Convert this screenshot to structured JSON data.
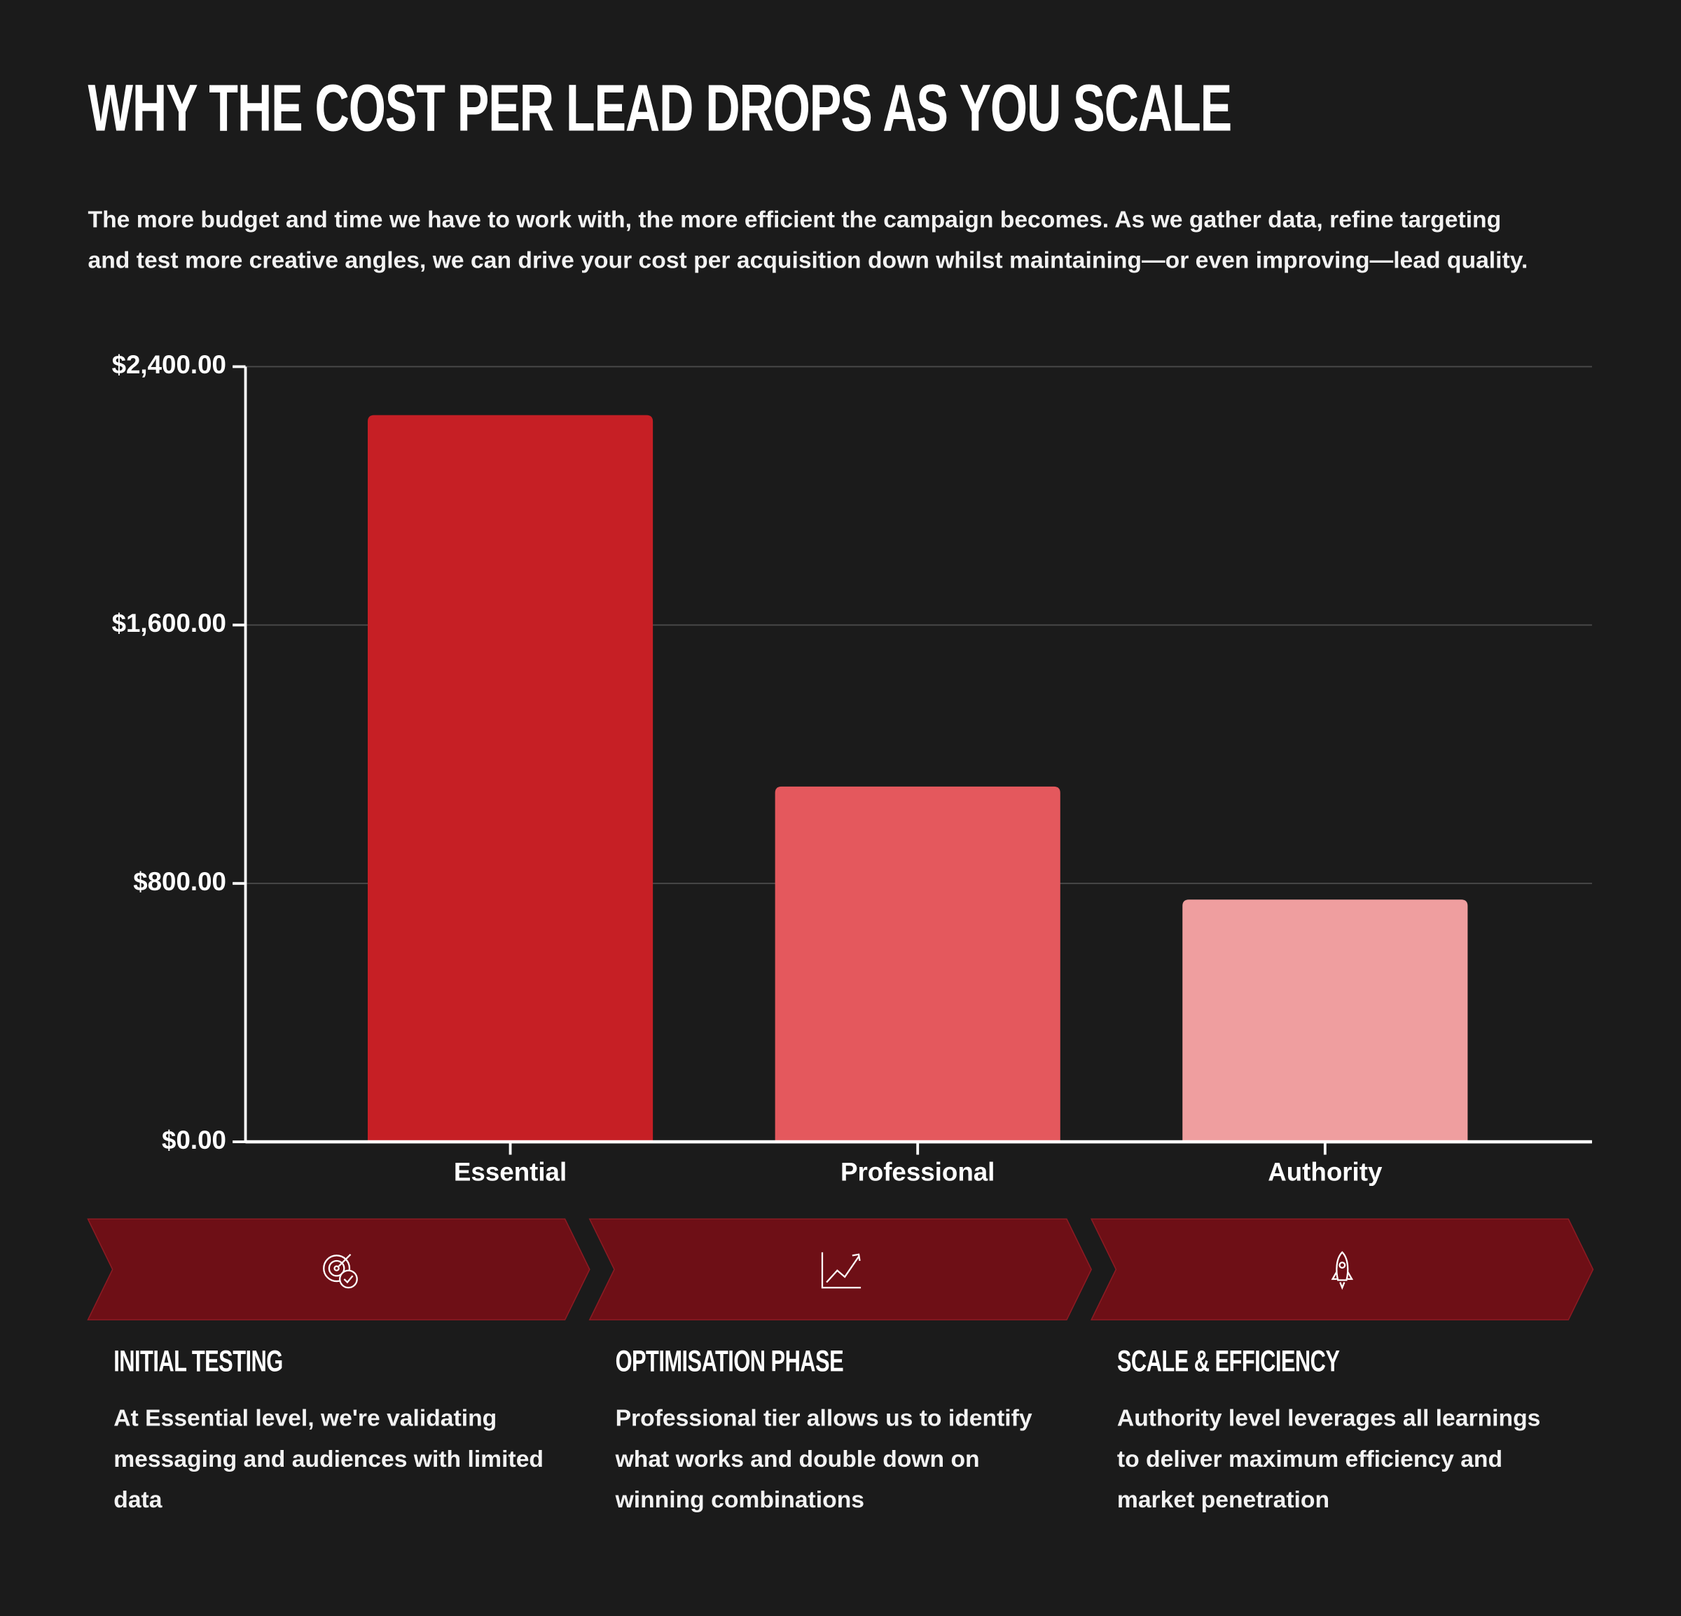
{
  "chart_data": {
    "type": "bar",
    "title": "WHY THE COST PER LEAD DROPS AS YOU SCALE",
    "subtitle": "The more budget and time we have to work with, the more efficient the campaign becomes. As we gather data, refine targeting and test more creative angles, we can drive your cost per acquisition down whilst maintaining—or even improving—lead quality.",
    "categories": [
      "Essential",
      "Professional",
      "Authority"
    ],
    "values": [
      2250,
      1100,
      750
    ],
    "colors": [
      "#c61f25",
      "#e4585d",
      "#ef9e9f"
    ],
    "ylim": [
      0,
      2400
    ],
    "yticks": [
      {
        "value": 0,
        "label": "$0.00"
      },
      {
        "value": 800,
        "label": "$800.00"
      },
      {
        "value": 1600,
        "label": "$1,600.00"
      },
      {
        "value": 2400,
        "label": "$2,400.00"
      }
    ],
    "grid": true
  },
  "phases": [
    {
      "title": "INITIAL TESTING",
      "text": "At Essential level, we're validating messaging and audiences with limited data"
    },
    {
      "title": "OPTIMISATION PHASE",
      "text": "Professional tier allows us to identify what works and double down on winning combinations"
    },
    {
      "title": "SCALE & EFFICIENCY",
      "text": "Authority level leverages all learnings to deliver maximum efficiency and market penetration"
    }
  ]
}
